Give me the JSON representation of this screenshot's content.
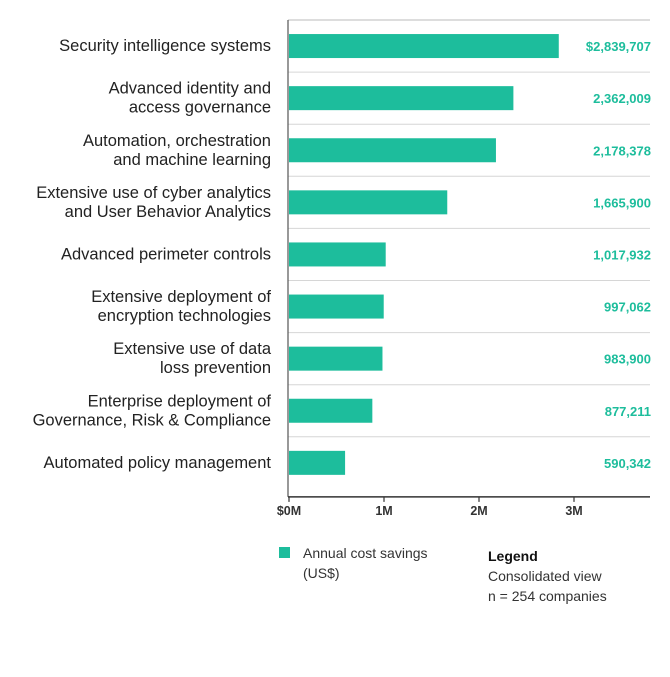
{
  "chart_data": {
    "type": "bar",
    "orientation": "horizontal",
    "categories": [
      [
        "Security intelligence systems"
      ],
      [
        "Advanced identity and",
        "access governance"
      ],
      [
        "Automation, orchestration",
        "and machine learning"
      ],
      [
        "Extensive use of cyber analytics",
        "and User Behavior Analytics"
      ],
      [
        "Advanced perimeter controls"
      ],
      [
        "Extensive deployment of",
        "encryption technologies"
      ],
      [
        "Extensive use of data",
        "loss prevention"
      ],
      [
        "Enterprise deployment of",
        "Governance, Risk & Compliance"
      ],
      [
        "Automated policy management"
      ]
    ],
    "values": [
      2839707,
      2362009,
      2178378,
      1665900,
      1017932,
      997062,
      983900,
      877211,
      590342
    ],
    "value_labels": [
      "$2,839,707",
      "2,362,009",
      "2,178,378",
      "1,665,900",
      "1,017,932",
      "997,062",
      "983,900",
      "877,211",
      "590,342"
    ],
    "xlim": [
      0,
      3800000
    ],
    "xticks": [
      {
        "value": 0,
        "label": "$0M"
      },
      {
        "value": 1000000,
        "label": "1M"
      },
      {
        "value": 2000000,
        "label": "2M"
      },
      {
        "value": 3000000,
        "label": "3M"
      }
    ],
    "bar_color": "#1dbd9c",
    "value_label_color": "#1dbd9c",
    "gridlines": true
  },
  "legend": {
    "series_label": "Annual cost savings (US$)"
  },
  "note": {
    "title": "Legend",
    "line1": "Consolidated view",
    "line2": "n = 254 companies"
  }
}
